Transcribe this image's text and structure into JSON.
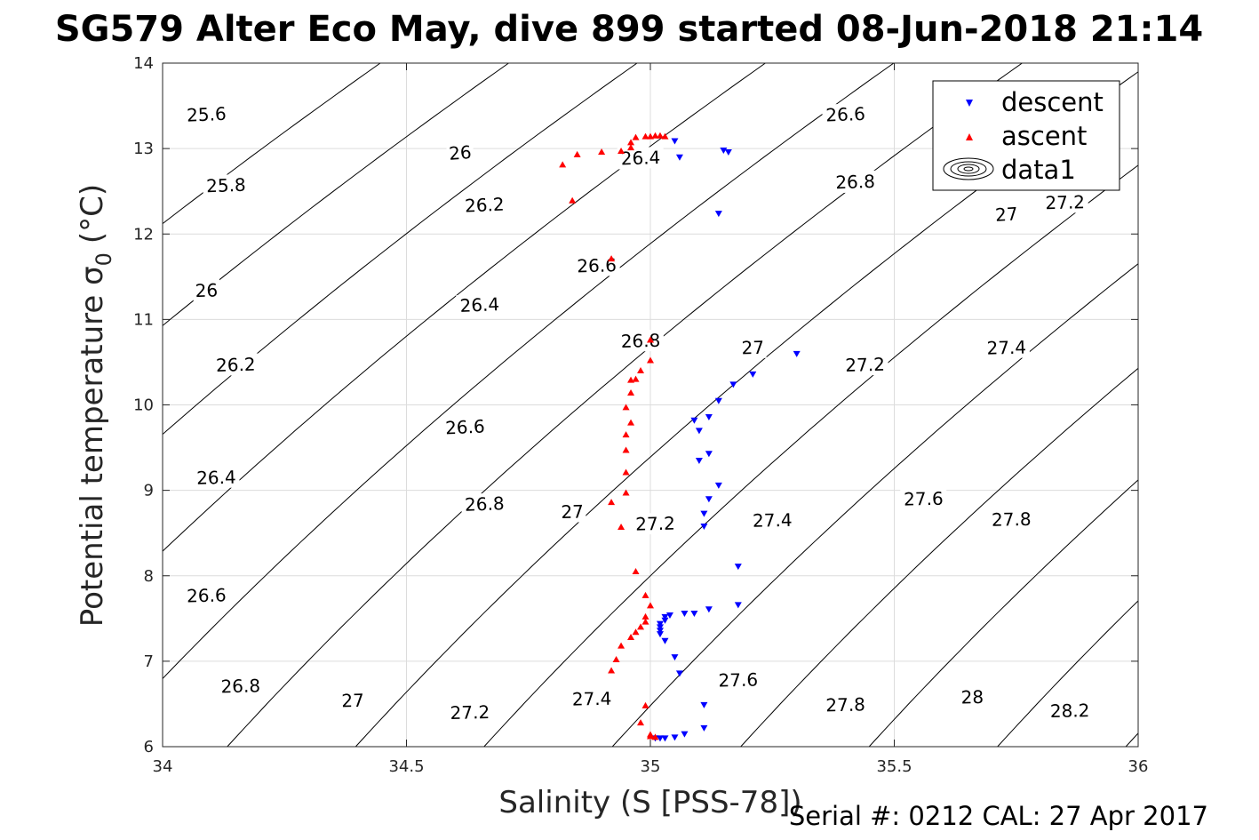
{
  "figure": {
    "footer": "Serial #: 0212  CAL: 27 Apr 2017"
  },
  "chart_data": {
    "type": "scatter",
    "title": "SG579 Alter Eco May, dive 899 started 08-Jun-2018 21:14",
    "xlabel": "Salinity (S [PSS-78])",
    "ylabel_main": "Potential temperature σ",
    "ylabel_sub": "0",
    "ylabel_unit": "(°C)",
    "xlim": [
      34,
      36
    ],
    "ylim": [
      6,
      14
    ],
    "xticks": [
      "34",
      "34.5",
      "35",
      "35.5",
      "36"
    ],
    "yticks": [
      "6",
      "7",
      "8",
      "9",
      "10",
      "11",
      "12",
      "13",
      "14"
    ],
    "grid": true,
    "legend_position": "top-right",
    "legend": [
      "descent",
      "ascent",
      "data1"
    ],
    "colors": {
      "descent": "#0000ff",
      "ascent": "#ff0000",
      "contour": "#000000",
      "grid": "#dcdcdc",
      "axis": "#262626"
    },
    "series": [
      {
        "name": "descent",
        "marker": "triangle-down",
        "points": [
          [
            35.05,
            13.09
          ],
          [
            35.06,
            12.9
          ],
          [
            35.15,
            12.98
          ],
          [
            35.16,
            12.96
          ],
          [
            35.14,
            12.24
          ],
          [
            35.3,
            10.6
          ],
          [
            35.21,
            10.36
          ],
          [
            35.17,
            10.24
          ],
          [
            35.14,
            10.05
          ],
          [
            35.12,
            9.86
          ],
          [
            35.09,
            9.82
          ],
          [
            35.1,
            9.7
          ],
          [
            35.12,
            9.43
          ],
          [
            35.1,
            9.35
          ],
          [
            35.14,
            9.06
          ],
          [
            35.12,
            8.9
          ],
          [
            35.11,
            8.73
          ],
          [
            35.11,
            8.58
          ],
          [
            35.18,
            8.11
          ],
          [
            35.18,
            7.66
          ],
          [
            35.12,
            7.61
          ],
          [
            35.09,
            7.56
          ],
          [
            35.07,
            7.56
          ],
          [
            35.04,
            7.54
          ],
          [
            35.03,
            7.52
          ],
          [
            35.03,
            7.48
          ],
          [
            35.02,
            7.44
          ],
          [
            35.02,
            7.4
          ],
          [
            35.02,
            7.36
          ],
          [
            35.02,
            7.32
          ],
          [
            35.03,
            7.24
          ],
          [
            35.05,
            7.05
          ],
          [
            35.06,
            6.86
          ],
          [
            35.11,
            6.49
          ],
          [
            35.11,
            6.22
          ],
          [
            35.07,
            6.15
          ],
          [
            35.05,
            6.11
          ],
          [
            35.03,
            6.1
          ],
          [
            35.02,
            6.1
          ],
          [
            35.01,
            6.1
          ]
        ]
      },
      {
        "name": "ascent",
        "marker": "triangle-up",
        "points": [
          [
            35.03,
            13.14
          ],
          [
            35.02,
            13.15
          ],
          [
            35.01,
            13.15
          ],
          [
            35.0,
            13.14
          ],
          [
            34.99,
            13.14
          ],
          [
            34.97,
            13.13
          ],
          [
            34.96,
            13.07
          ],
          [
            34.96,
            13.01
          ],
          [
            34.94,
            12.97
          ],
          [
            34.9,
            12.96
          ],
          [
            34.85,
            12.93
          ],
          [
            34.82,
            12.81
          ],
          [
            34.84,
            12.39
          ],
          [
            34.92,
            11.71
          ],
          [
            35.0,
            10.76
          ],
          [
            35.0,
            10.52
          ],
          [
            34.98,
            10.4
          ],
          [
            34.97,
            10.3
          ],
          [
            34.96,
            10.29
          ],
          [
            34.96,
            10.14
          ],
          [
            34.95,
            9.97
          ],
          [
            34.96,
            9.79
          ],
          [
            34.95,
            9.65
          ],
          [
            34.95,
            9.47
          ],
          [
            34.95,
            9.21
          ],
          [
            34.95,
            8.97
          ],
          [
            34.92,
            8.86
          ],
          [
            34.94,
            8.57
          ],
          [
            34.97,
            8.05
          ],
          [
            34.99,
            7.77
          ],
          [
            35.0,
            7.65
          ],
          [
            34.99,
            7.52
          ],
          [
            34.99,
            7.46
          ],
          [
            34.98,
            7.4
          ],
          [
            34.97,
            7.34
          ],
          [
            34.96,
            7.28
          ],
          [
            34.94,
            7.18
          ],
          [
            34.93,
            7.02
          ],
          [
            34.92,
            6.89
          ],
          [
            34.99,
            6.48
          ],
          [
            34.98,
            6.28
          ],
          [
            35.0,
            6.14
          ],
          [
            35.0,
            6.12
          ],
          [
            35.01,
            6.11
          ]
        ]
      }
    ],
    "contours": {
      "levels": [
        25.6,
        25.8,
        26,
        26.2,
        26.4,
        26.6,
        26.8,
        27,
        27.2,
        27.4,
        27.6,
        27.8,
        28,
        28.2
      ],
      "label_positions": [
        [
          25.6,
          34.09,
          13.4
        ],
        [
          25.8,
          34.13,
          12.57
        ],
        [
          26,
          34.09,
          11.34
        ],
        [
          26.2,
          34.15,
          10.47
        ],
        [
          26.4,
          34.11,
          9.15
        ],
        [
          26.6,
          34.09,
          7.77
        ],
        [
          26.8,
          34.16,
          6.71
        ],
        [
          27,
          34.39,
          6.54
        ],
        [
          27.2,
          34.63,
          6.4
        ],
        [
          27.4,
          34.88,
          6.56
        ],
        [
          27.6,
          35.18,
          6.78
        ],
        [
          27.8,
          35.4,
          6.49
        ],
        [
          28,
          35.66,
          6.58
        ],
        [
          28.2,
          35.86,
          6.42
        ],
        [
          26,
          34.61,
          12.95
        ],
        [
          26.2,
          34.66,
          12.34
        ],
        [
          26.4,
          34.65,
          11.17
        ],
        [
          26.6,
          34.62,
          9.74
        ],
        [
          26.8,
          34.66,
          8.84
        ],
        [
          27,
          34.84,
          8.75
        ],
        [
          27.2,
          35.01,
          8.61
        ],
        [
          27.4,
          35.25,
          8.65
        ],
        [
          27.6,
          35.56,
          8.9
        ],
        [
          27.8,
          35.74,
          8.66
        ],
        [
          26.4,
          34.98,
          12.89
        ],
        [
          26.6,
          34.89,
          11.63
        ],
        [
          26.8,
          34.98,
          10.75
        ],
        [
          27,
          35.21,
          10.67
        ],
        [
          27.2,
          35.44,
          10.47
        ],
        [
          27.4,
          35.73,
          10.67
        ],
        [
          26.6,
          35.4,
          13.4
        ],
        [
          26.8,
          35.42,
          12.61
        ],
        [
          27,
          35.73,
          12.23
        ],
        [
          27.2,
          35.85,
          12.37
        ]
      ]
    },
    "legend_item_3_icon": "ellipse-contour-icon"
  }
}
